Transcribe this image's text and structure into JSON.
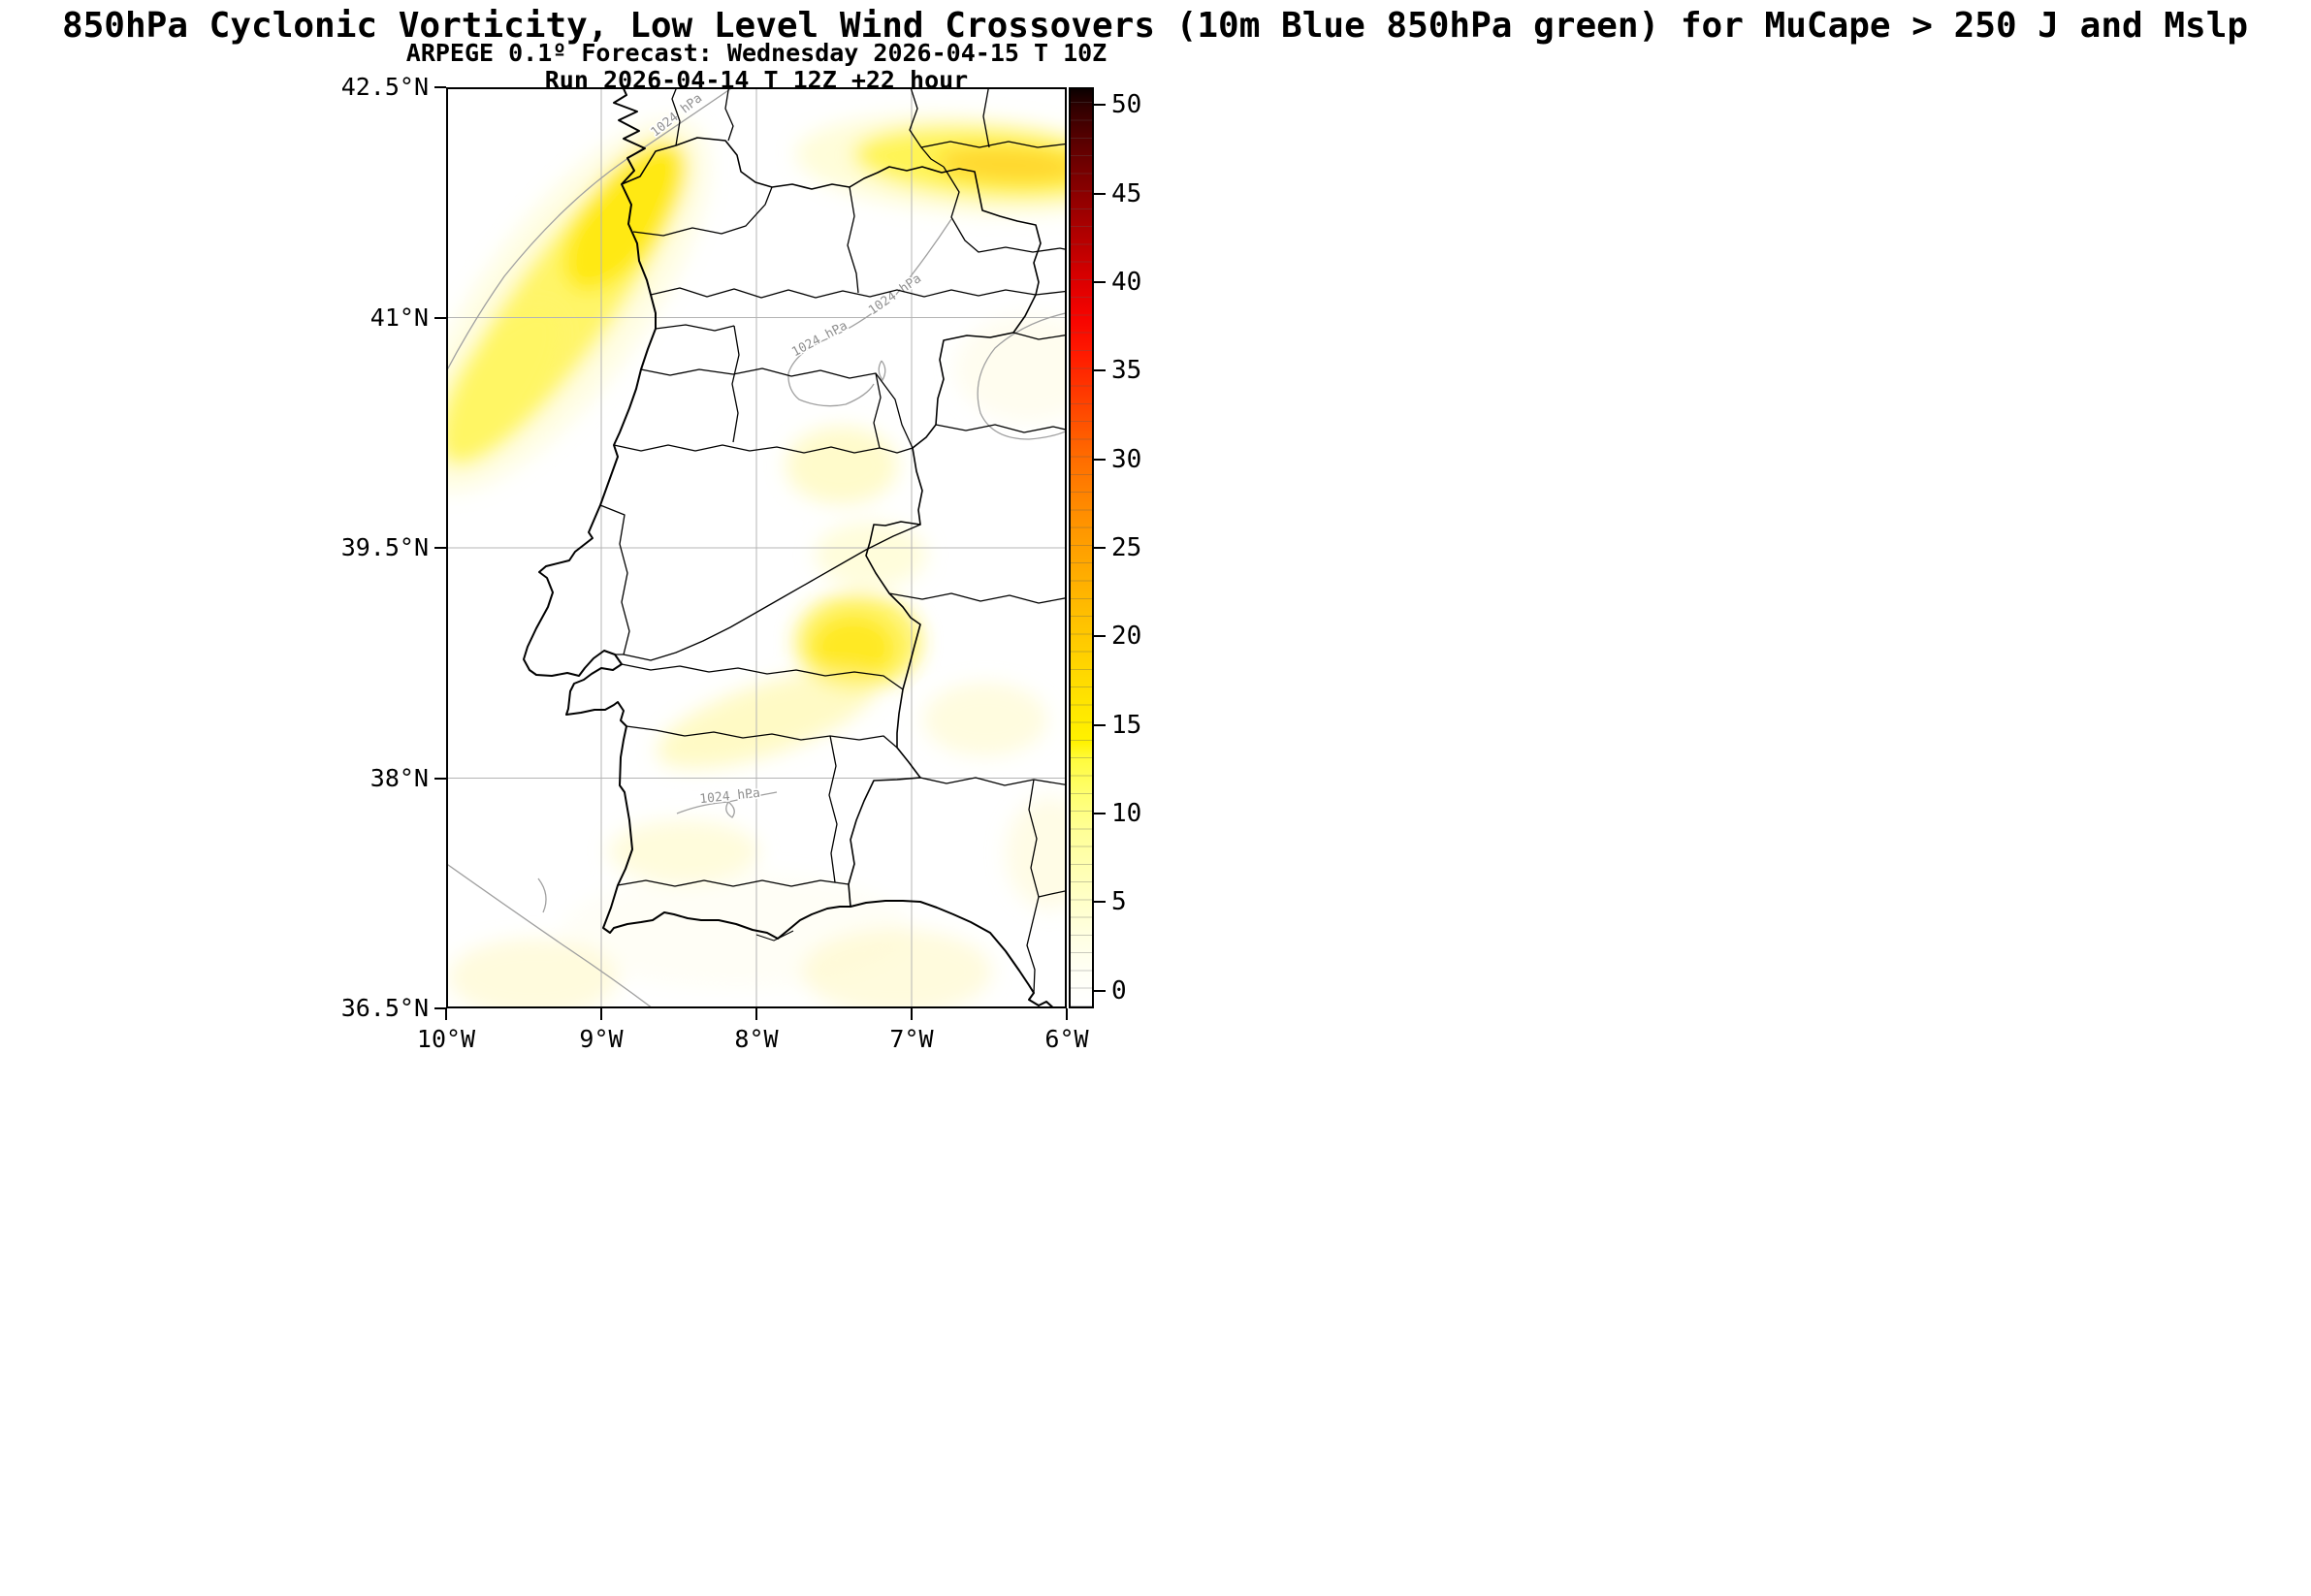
{
  "titles": {
    "line1": "850hPa Cyclonic Vorticity, Low Level Wind Crossovers (10m Blue 850hPa green) for MuCape > 250 J and Mslp",
    "line2": "ARPEGE 0.1º Forecast: Wednesday 2026-04-15 T 10Z",
    "line3": "Run 2026-04-14 T 12Z +22 hour"
  },
  "axes": {
    "y_ticks": [
      {
        "label": "42.5°N",
        "lat": 42.5
      },
      {
        "label": "41°N",
        "lat": 41
      },
      {
        "label": "39.5°N",
        "lat": 39.5
      },
      {
        "label": "38°N",
        "lat": 38
      },
      {
        "label": "36.5°N",
        "lat": 36.5
      }
    ],
    "x_ticks": [
      {
        "label": "10°W",
        "lon": -10
      },
      {
        "label": "9°W",
        "lon": -9
      },
      {
        "label": "8°W",
        "lon": -8
      },
      {
        "label": "7°W",
        "lon": -7
      },
      {
        "label": "6°W",
        "lon": -6
      }
    ]
  },
  "colorbar": {
    "vmin": 0,
    "vmax": 50,
    "scale_min": -1,
    "scale_max": 51,
    "ticks": [
      0,
      5,
      10,
      15,
      20,
      25,
      30,
      35,
      40,
      45,
      50
    ],
    "stops": [
      {
        "v": -1,
        "c": "#ffffff"
      },
      {
        "v": 1,
        "c": "#fffff5"
      },
      {
        "v": 3,
        "c": "#ffffe2"
      },
      {
        "v": 5,
        "c": "#ffffc8"
      },
      {
        "v": 7,
        "c": "#ffffb0"
      },
      {
        "v": 9,
        "c": "#ffff96"
      },
      {
        "v": 11,
        "c": "#ffff70"
      },
      {
        "v": 13,
        "c": "#fffb3e"
      },
      {
        "v": 14,
        "c": "#fff200"
      },
      {
        "v": 16,
        "c": "#ffe600"
      },
      {
        "v": 18,
        "c": "#ffd700"
      },
      {
        "v": 20,
        "c": "#ffc800"
      },
      {
        "v": 22,
        "c": "#ffb800"
      },
      {
        "v": 24,
        "c": "#ffa800"
      },
      {
        "v": 26,
        "c": "#ff9700"
      },
      {
        "v": 28,
        "c": "#ff8300"
      },
      {
        "v": 30,
        "c": "#ff6d00"
      },
      {
        "v": 32,
        "c": "#ff5300"
      },
      {
        "v": 34,
        "c": "#ff3600"
      },
      {
        "v": 36,
        "c": "#ff1a00"
      },
      {
        "v": 38,
        "c": "#f70400"
      },
      {
        "v": 40,
        "c": "#dd0000"
      },
      {
        "v": 42,
        "c": "#bd0000"
      },
      {
        "v": 44,
        "c": "#9d0000"
      },
      {
        "v": 46,
        "c": "#7d0000"
      },
      {
        "v": 48,
        "c": "#5a0000"
      },
      {
        "v": 50,
        "c": "#300000"
      },
      {
        "v": 51,
        "c": "#0b0000"
      }
    ]
  },
  "map": {
    "isobar_label": "1024 hPa",
    "isobar_value_hpa": 1024,
    "boundary_color": "#000000",
    "isobar_color": "#a0a0a0",
    "grid_color": "#b4b4b4"
  },
  "chart_data": {
    "type": "heatmap",
    "title": "850hPa Cyclonic Vorticity, Low Level Wind Crossovers (10m Blue 850hPa green) for MuCape > 250 J and Mslp",
    "subtitle": "ARPEGE 0.1º Forecast: Wednesday 2026-04-15 T 10Z",
    "run_line": "Run 2026-04-14 T 12Z +22 hour",
    "model": "ARPEGE 0.1º",
    "valid_time": "2026-04-15 10Z",
    "run_time": "2026-04-14 12Z",
    "forecast_hour": 22,
    "xlabel_ticks": [
      "10°W",
      "9°W",
      "8°W",
      "7°W",
      "6°W"
    ],
    "ylabel_ticks": [
      "42.5°N",
      "41°N",
      "39.5°N",
      "38°N",
      "36.5°N"
    ],
    "xlim": [
      -10,
      -6
    ],
    "ylim": [
      36.5,
      42.5
    ],
    "grid": true,
    "colorbar_range": [
      0,
      50
    ],
    "colorbar_tick_step": 5,
    "mslp_isobars_hpa": [
      1024
    ],
    "vorticity_features": [
      {
        "name": "band-northwest-coast",
        "type": "band",
        "from_latlon": [
          42.1,
          -8.6
        ],
        "to_latlon": [
          40.2,
          -10.0
        ],
        "peak_value": 14
      },
      {
        "name": "band-northeast-spain",
        "type": "band",
        "from_latlon": [
          42.15,
          -7.3
        ],
        "to_latlon": [
          42.05,
          -6.0
        ],
        "peak_value": 18
      },
      {
        "name": "blob-center-beira",
        "type": "blob",
        "center_latlon": [
          40.05,
          -7.45
        ],
        "peak_value": 7
      },
      {
        "name": "blob-tejo-border",
        "type": "blob",
        "center_latlon": [
          39.45,
          -7.25
        ],
        "peak_value": 6
      },
      {
        "name": "blob-alto-alentejo",
        "type": "blob",
        "center_latlon": [
          38.9,
          -7.35
        ],
        "peak_value": 13
      },
      {
        "name": "band-evora",
        "type": "band",
        "from_latlon": [
          38.2,
          -8.5
        ],
        "to_latlon": [
          38.6,
          -7.3
        ],
        "peak_value": 7
      },
      {
        "name": "blob-badajoz",
        "type": "blob",
        "center_latlon": [
          38.4,
          -6.5
        ],
        "peak_value": 5
      },
      {
        "name": "patch-algarve-interior",
        "type": "blob",
        "center_latlon": [
          37.5,
          -8.5
        ],
        "peak_value": 4
      },
      {
        "name": "patch-southwest-sea",
        "type": "blob",
        "center_latlon": [
          36.7,
          -9.45
        ],
        "peak_value": 4
      },
      {
        "name": "patch-gulf-of-cadiz",
        "type": "blob",
        "center_latlon": [
          36.75,
          -7.1
        ],
        "peak_value": 4
      },
      {
        "name": "patch-east-edge",
        "type": "blob",
        "center_latlon": [
          37.5,
          -6.1
        ],
        "peak_value": 4
      }
    ]
  }
}
